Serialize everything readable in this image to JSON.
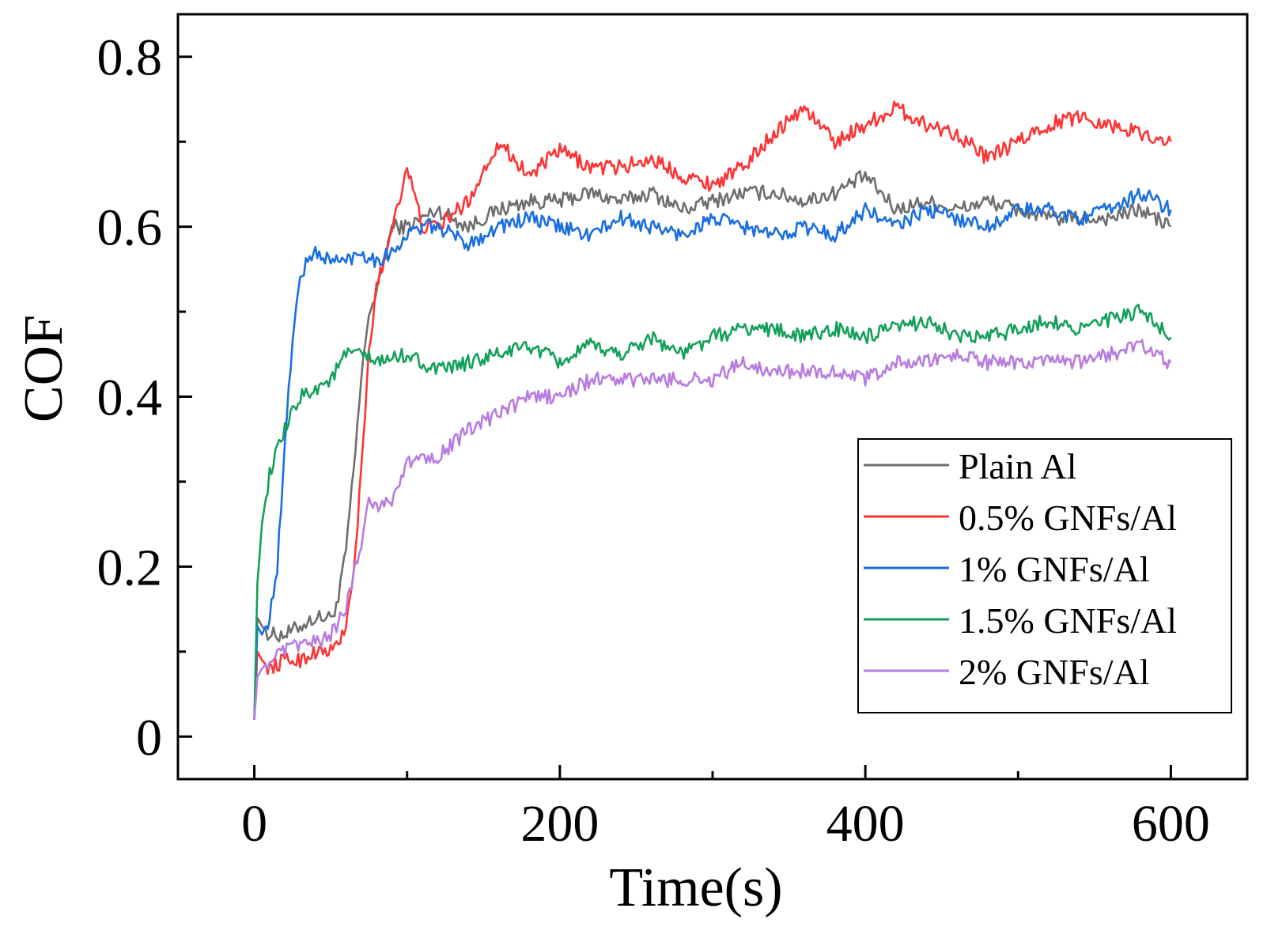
{
  "chart_data": {
    "type": "line",
    "title": "",
    "xlabel": "Time(s)",
    "ylabel": "COF",
    "xlim": [
      -50,
      650
    ],
    "ylim": [
      -0.05,
      0.85
    ],
    "xticks": [
      0,
      200,
      400,
      600
    ],
    "xtick_labels": [
      "0",
      "200",
      "400",
      "600"
    ],
    "yticks": [
      0,
      0.2,
      0.4,
      0.6,
      0.8
    ],
    "ytick_labels": [
      "0",
      "0.2",
      "0.4",
      "0.6",
      "0.8"
    ],
    "grid": false,
    "legend_position": "bottom-right",
    "series": [
      {
        "name": "Plain Al",
        "color": "#6e6e6e",
        "x": [
          0,
          2,
          5,
          10,
          20,
          30,
          40,
          50,
          55,
          60,
          65,
          70,
          75,
          80,
          85,
          90,
          100,
          110,
          120,
          140,
          160,
          180,
          200,
          220,
          240,
          260,
          280,
          300,
          320,
          340,
          360,
          380,
          400,
          420,
          440,
          460,
          480,
          500,
          520,
          540,
          560,
          580,
          600
        ],
        "values": [
          0.02,
          0.14,
          0.13,
          0.12,
          0.12,
          0.13,
          0.14,
          0.14,
          0.16,
          0.22,
          0.31,
          0.42,
          0.5,
          0.52,
          0.56,
          0.6,
          0.6,
          0.61,
          0.62,
          0.6,
          0.62,
          0.63,
          0.63,
          0.64,
          0.63,
          0.64,
          0.62,
          0.63,
          0.64,
          0.64,
          0.63,
          0.64,
          0.66,
          0.62,
          0.63,
          0.62,
          0.63,
          0.62,
          0.61,
          0.61,
          0.61,
          0.62,
          0.6
        ]
      },
      {
        "name": "0.5% GNFs/Al",
        "color": "#ff3333",
        "x": [
          0,
          2,
          5,
          10,
          20,
          30,
          40,
          50,
          55,
          60,
          65,
          70,
          75,
          80,
          85,
          90,
          100,
          110,
          120,
          140,
          160,
          180,
          200,
          220,
          240,
          260,
          280,
          300,
          320,
          340,
          360,
          380,
          400,
          420,
          440,
          460,
          480,
          500,
          520,
          540,
          560,
          580,
          600
        ],
        "values": [
          0.02,
          0.1,
          0.09,
          0.08,
          0.09,
          0.09,
          0.1,
          0.1,
          0.11,
          0.13,
          0.19,
          0.31,
          0.45,
          0.53,
          0.56,
          0.6,
          0.67,
          0.6,
          0.6,
          0.63,
          0.7,
          0.66,
          0.69,
          0.67,
          0.67,
          0.68,
          0.66,
          0.65,
          0.67,
          0.71,
          0.74,
          0.7,
          0.72,
          0.74,
          0.72,
          0.71,
          0.68,
          0.7,
          0.72,
          0.73,
          0.72,
          0.71,
          0.7
        ]
      },
      {
        "name": "1% GNFs/Al",
        "color": "#1a6fdf",
        "x": [
          0,
          2,
          5,
          10,
          15,
          20,
          25,
          30,
          35,
          40,
          50,
          60,
          70,
          80,
          90,
          100,
          110,
          120,
          140,
          160,
          180,
          200,
          220,
          240,
          260,
          280,
          300,
          320,
          340,
          360,
          380,
          400,
          420,
          440,
          460,
          480,
          500,
          520,
          540,
          560,
          580,
          600
        ],
        "values": [
          0.02,
          0.13,
          0.12,
          0.14,
          0.2,
          0.34,
          0.47,
          0.54,
          0.56,
          0.57,
          0.56,
          0.56,
          0.57,
          0.56,
          0.57,
          0.59,
          0.6,
          0.6,
          0.58,
          0.6,
          0.61,
          0.6,
          0.59,
          0.61,
          0.6,
          0.59,
          0.61,
          0.6,
          0.59,
          0.6,
          0.59,
          0.62,
          0.6,
          0.62,
          0.61,
          0.6,
          0.62,
          0.62,
          0.61,
          0.62,
          0.64,
          0.62
        ]
      },
      {
        "name": "1.5% GNFs/Al",
        "color": "#14a05a",
        "x": [
          0,
          2,
          5,
          10,
          20,
          30,
          40,
          50,
          60,
          70,
          80,
          100,
          120,
          140,
          160,
          180,
          200,
          220,
          240,
          260,
          280,
          300,
          320,
          340,
          360,
          380,
          400,
          420,
          440,
          460,
          480,
          500,
          520,
          540,
          560,
          580,
          600
        ],
        "values": [
          0.02,
          0.18,
          0.25,
          0.31,
          0.36,
          0.4,
          0.41,
          0.42,
          0.45,
          0.45,
          0.44,
          0.45,
          0.43,
          0.44,
          0.45,
          0.46,
          0.44,
          0.46,
          0.45,
          0.47,
          0.45,
          0.47,
          0.48,
          0.48,
          0.47,
          0.48,
          0.47,
          0.48,
          0.49,
          0.47,
          0.47,
          0.48,
          0.49,
          0.48,
          0.49,
          0.5,
          0.47
        ]
      },
      {
        "name": "2% GNFs/Al",
        "color": "#b77ce0",
        "x": [
          0,
          2,
          5,
          10,
          20,
          30,
          40,
          50,
          60,
          65,
          70,
          75,
          80,
          90,
          100,
          110,
          120,
          140,
          160,
          180,
          200,
          220,
          240,
          260,
          280,
          300,
          320,
          340,
          360,
          380,
          400,
          420,
          440,
          460,
          480,
          500,
          520,
          540,
          560,
          580,
          600
        ],
        "values": [
          0.02,
          0.07,
          0.08,
          0.09,
          0.1,
          0.11,
          0.11,
          0.12,
          0.15,
          0.19,
          0.23,
          0.28,
          0.27,
          0.28,
          0.32,
          0.33,
          0.33,
          0.36,
          0.38,
          0.4,
          0.4,
          0.42,
          0.42,
          0.42,
          0.42,
          0.42,
          0.44,
          0.43,
          0.43,
          0.43,
          0.42,
          0.44,
          0.44,
          0.45,
          0.44,
          0.44,
          0.44,
          0.44,
          0.45,
          0.46,
          0.44
        ]
      }
    ]
  }
}
